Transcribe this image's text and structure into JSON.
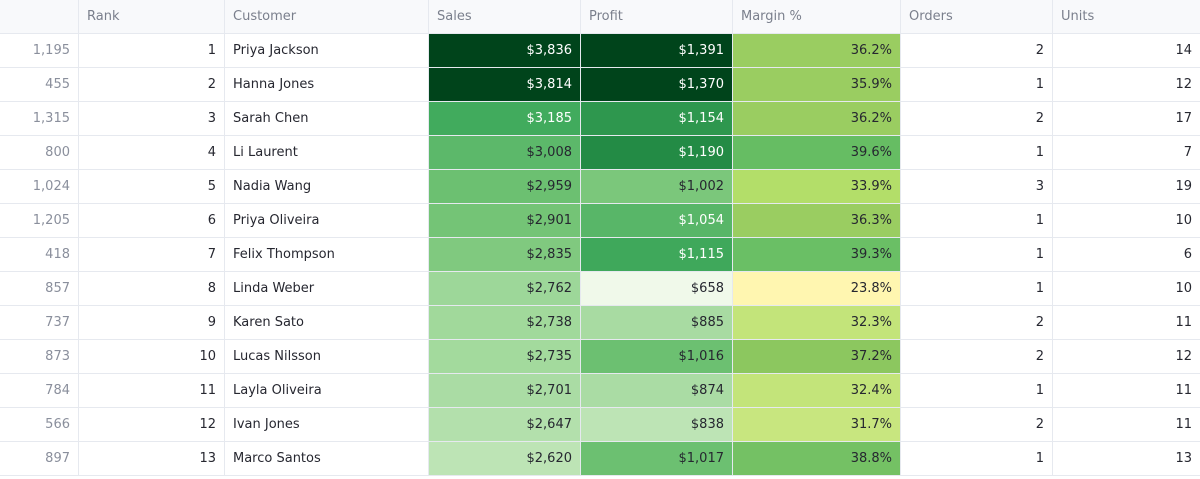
{
  "columns": {
    "index": "",
    "rank": "Rank",
    "customer": "Customer",
    "sales": "Sales",
    "profit": "Profit",
    "margin": "Margin %",
    "orders": "Orders",
    "units": "Units"
  },
  "rows": [
    {
      "index": "1,195",
      "rank": "1",
      "customer": "Priya Jackson",
      "sales": "$3,836",
      "profit": "$1,391",
      "margin": "36.2%",
      "orders": "2",
      "units": "14",
      "sales_bg": "#00441b",
      "profit_bg": "#00441b",
      "margin_bg": "#9acd61",
      "sales_fg": "#ffffff",
      "profit_fg": "#ffffff",
      "margin_fg": "#262730"
    },
    {
      "index": "455",
      "rank": "2",
      "customer": "Hanna Jones",
      "sales": "$3,814",
      "profit": "$1,370",
      "margin": "35.9%",
      "orders": "1",
      "units": "12",
      "sales_bg": "#00441b",
      "profit_bg": "#00441b",
      "margin_bg": "#9acd61",
      "sales_fg": "#ffffff",
      "profit_fg": "#ffffff",
      "margin_fg": "#262730"
    },
    {
      "index": "1,315",
      "rank": "3",
      "customer": "Sarah Chen",
      "sales": "$3,185",
      "profit": "$1,154",
      "margin": "36.2%",
      "orders": "2",
      "units": "17",
      "sales_bg": "#41ab5d",
      "profit_bg": "#2e974e",
      "margin_bg": "#9acd61",
      "sales_fg": "#ffffff",
      "profit_fg": "#ffffff",
      "margin_fg": "#262730"
    },
    {
      "index": "800",
      "rank": "4",
      "customer": "Li Laurent",
      "sales": "$3,008",
      "profit": "$1,190",
      "margin": "39.6%",
      "orders": "1",
      "units": "7",
      "sales_bg": "#5cb86a",
      "profit_bg": "#238b45",
      "margin_bg": "#66bd63",
      "sales_fg": "#262730",
      "profit_fg": "#ffffff",
      "margin_fg": "#262730"
    },
    {
      "index": "1,024",
      "rank": "5",
      "customer": "Nadia Wang",
      "sales": "$2,959",
      "profit": "$1,002",
      "margin": "33.9%",
      "orders": "3",
      "units": "19",
      "sales_bg": "#6cc071",
      "profit_bg": "#7bc77b",
      "margin_bg": "#b3de69",
      "sales_fg": "#262730",
      "profit_fg": "#262730",
      "margin_fg": "#262730"
    },
    {
      "index": "1,205",
      "rank": "6",
      "customer": "Priya Oliveira",
      "sales": "$2,901",
      "profit": "$1,054",
      "margin": "36.3%",
      "orders": "1",
      "units": "10",
      "sales_bg": "#74c476",
      "profit_bg": "#58b668",
      "margin_bg": "#9acd61",
      "sales_fg": "#262730",
      "profit_fg": "#ffffff",
      "margin_fg": "#262730"
    },
    {
      "index": "418",
      "rank": "7",
      "customer": "Felix Thompson",
      "sales": "$2,835",
      "profit": "$1,115",
      "margin": "39.3%",
      "orders": "1",
      "units": "6",
      "sales_bg": "#80c97f",
      "profit_bg": "#3fa85b",
      "margin_bg": "#6abf65",
      "sales_fg": "#262730",
      "profit_fg": "#ffffff",
      "margin_fg": "#262730"
    },
    {
      "index": "857",
      "rank": "8",
      "customer": "Linda Weber",
      "sales": "$2,762",
      "profit": "$658",
      "margin": "23.8%",
      "orders": "1",
      "units": "10",
      "sales_bg": "#9dd799",
      "profit_bg": "#f0f9ea",
      "margin_bg": "#fff6b0",
      "sales_fg": "#262730",
      "profit_fg": "#262730",
      "margin_fg": "#262730"
    },
    {
      "index": "737",
      "rank": "9",
      "customer": "Karen Sato",
      "sales": "$2,738",
      "profit": "$885",
      "margin": "32.3%",
      "orders": "2",
      "units": "11",
      "sales_bg": "#a1d99b",
      "profit_bg": "#a8dba2",
      "margin_bg": "#c3e47a",
      "sales_fg": "#262730",
      "profit_fg": "#262730",
      "margin_fg": "#262730"
    },
    {
      "index": "873",
      "rank": "10",
      "customer": "Lucas Nilsson",
      "sales": "$2,735",
      "profit": "$1,016",
      "margin": "37.2%",
      "orders": "2",
      "units": "12",
      "sales_bg": "#a3da9d",
      "profit_bg": "#6cc071",
      "margin_bg": "#8cc75f",
      "sales_fg": "#262730",
      "profit_fg": "#262730",
      "margin_fg": "#262730"
    },
    {
      "index": "784",
      "rank": "11",
      "customer": "Layla Oliveira",
      "sales": "$2,701",
      "profit": "$874",
      "margin": "32.4%",
      "orders": "1",
      "units": "11",
      "sales_bg": "#aadca4",
      "profit_bg": "#aadca4",
      "margin_bg": "#c3e47a",
      "sales_fg": "#262730",
      "profit_fg": "#262730",
      "margin_fg": "#262730"
    },
    {
      "index": "566",
      "rank": "12",
      "customer": "Ivan Jones",
      "sales": "$2,647",
      "profit": "$838",
      "margin": "31.7%",
      "orders": "2",
      "units": "11",
      "sales_bg": "#b3e0ac",
      "profit_bg": "#bde4b5",
      "margin_bg": "#c8e67f",
      "sales_fg": "#262730",
      "profit_fg": "#262730",
      "margin_fg": "#262730"
    },
    {
      "index": "897",
      "rank": "13",
      "customer": "Marco Santos",
      "sales": "$2,620",
      "profit": "$1,017",
      "margin": "38.8%",
      "orders": "1",
      "units": "13",
      "sales_bg": "#bde4b5",
      "profit_bg": "#6cc071",
      "margin_bg": "#74c164",
      "sales_fg": "#262730",
      "profit_fg": "#262730",
      "margin_fg": "#262730"
    }
  ]
}
